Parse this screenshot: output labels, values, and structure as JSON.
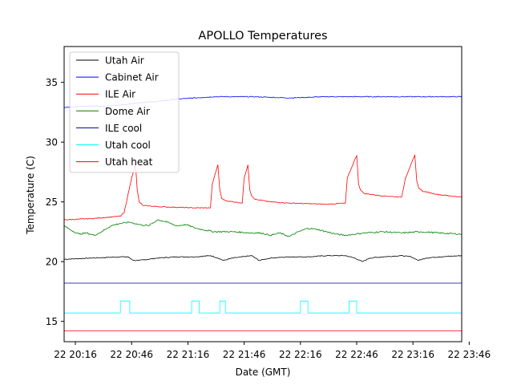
{
  "chart_data": {
    "type": "line",
    "title": "APOLLO Temperatures",
    "xlabel": "Date (GMT)",
    "ylabel": "Temperature (C)",
    "x_range_minutes": [
      0,
      212
    ],
    "ylim": [
      13.3,
      38.0
    ],
    "x_ticks": [
      {
        "minutes": 6,
        "label": "22 20:16"
      },
      {
        "minutes": 36,
        "label": "22 20:46"
      },
      {
        "minutes": 66,
        "label": "22 21:16"
      },
      {
        "minutes": 96,
        "label": "22 21:46"
      },
      {
        "minutes": 126,
        "label": "22 22:16"
      },
      {
        "minutes": 156,
        "label": "22 22:46"
      },
      {
        "minutes": 186,
        "label": "22 23:16"
      },
      {
        "minutes": 216,
        "label": "22 23:46"
      }
    ],
    "y_ticks": [
      {
        "value": 15,
        "label": "15"
      },
      {
        "value": 20,
        "label": "20"
      },
      {
        "value": 25,
        "label": "25"
      },
      {
        "value": 30,
        "label": "30"
      },
      {
        "value": 35,
        "label": "35"
      }
    ],
    "grid": false,
    "legend_position": "top-left",
    "series": [
      {
        "name": "Utah Air",
        "color": "#000000",
        "x": [
          0,
          15,
          30,
          34,
          37,
          40,
          50,
          60,
          70,
          78,
          82,
          85,
          90,
          100,
          101,
          104,
          110,
          120,
          130,
          140,
          150,
          155,
          159,
          163,
          170,
          180,
          185,
          189,
          193,
          200,
          212
        ],
        "values": [
          20.2,
          20.3,
          20.4,
          20.4,
          20.1,
          20.1,
          20.3,
          20.4,
          20.4,
          20.5,
          20.3,
          20.1,
          20.3,
          20.5,
          20.4,
          20.1,
          20.3,
          20.4,
          20.4,
          20.5,
          20.5,
          20.3,
          20.0,
          20.3,
          20.4,
          20.5,
          20.4,
          20.1,
          20.3,
          20.4,
          20.5
        ]
      },
      {
        "name": "Cabinet Air",
        "color": "#0000ff",
        "x": [
          0,
          10,
          20,
          30,
          40,
          50,
          60,
          70,
          80,
          100,
          120,
          140,
          160,
          180,
          200,
          212
        ],
        "values": [
          32.9,
          33.0,
          33.0,
          33.1,
          33.3,
          33.4,
          33.6,
          33.7,
          33.8,
          33.8,
          33.7,
          33.8,
          33.8,
          33.8,
          33.8,
          33.8
        ]
      },
      {
        "name": "ILE Air",
        "color": "#ff0000",
        "x": [
          0,
          15,
          30,
          32,
          36,
          38,
          39,
          40,
          42,
          50,
          70,
          78,
          79,
          82,
          83,
          84,
          86,
          95,
          96,
          98,
          99,
          100,
          102,
          110,
          120,
          140,
          150,
          151,
          156,
          157,
          158,
          160,
          170,
          180,
          182,
          187,
          188,
          189,
          191,
          200,
          212
        ],
        "values": [
          23.5,
          23.6,
          23.8,
          24.1,
          27.0,
          28.2,
          26.0,
          25.0,
          24.7,
          24.6,
          24.5,
          24.5,
          26.5,
          28.1,
          26.0,
          25.3,
          25.1,
          24.9,
          27.0,
          28.1,
          26.0,
          25.5,
          25.2,
          25.0,
          24.9,
          24.8,
          24.9,
          27.0,
          28.9,
          26.5,
          26.0,
          25.7,
          25.5,
          25.4,
          27.0,
          28.9,
          26.8,
          26.2,
          25.9,
          25.6,
          25.4
        ]
      },
      {
        "name": "Dome Air",
        "color": "#008000",
        "x": [
          0,
          4,
          8,
          12,
          16,
          20,
          25,
          30,
          35,
          40,
          45,
          50,
          55,
          60,
          65,
          70,
          80,
          90,
          100,
          105,
          110,
          115,
          120,
          125,
          130,
          135,
          140,
          145,
          150,
          160,
          170,
          180,
          190,
          200,
          212
        ],
        "values": [
          23.0,
          22.6,
          22.3,
          22.4,
          22.2,
          22.5,
          23.0,
          23.2,
          23.3,
          23.1,
          23.0,
          23.5,
          23.3,
          23.0,
          23.1,
          22.8,
          22.5,
          22.5,
          22.4,
          22.4,
          22.2,
          22.4,
          22.1,
          22.5,
          22.8,
          22.7,
          22.5,
          22.3,
          22.2,
          22.4,
          22.5,
          22.4,
          22.5,
          22.4,
          22.3
        ]
      },
      {
        "name": "ILE cool",
        "color": "#00008b",
        "x": [
          0,
          212
        ],
        "values": [
          18.2,
          18.2
        ]
      },
      {
        "name": "Utah cool",
        "color": "#00ffff",
        "x": [
          0,
          30,
          30,
          35,
          35,
          68,
          68,
          72,
          72,
          83,
          83,
          86,
          86,
          126,
          126,
          130,
          130,
          152,
          152,
          156,
          156,
          212
        ],
        "values": [
          15.7,
          15.7,
          16.7,
          16.7,
          15.7,
          15.7,
          16.7,
          16.7,
          15.7,
          15.7,
          16.7,
          16.7,
          15.7,
          15.7,
          16.7,
          16.7,
          15.7,
          15.7,
          16.7,
          16.7,
          15.7,
          15.7
        ]
      },
      {
        "name": "Utah heat",
        "color": "#ff0000",
        "x": [
          0,
          212
        ],
        "values": [
          14.2,
          14.2
        ]
      }
    ]
  }
}
